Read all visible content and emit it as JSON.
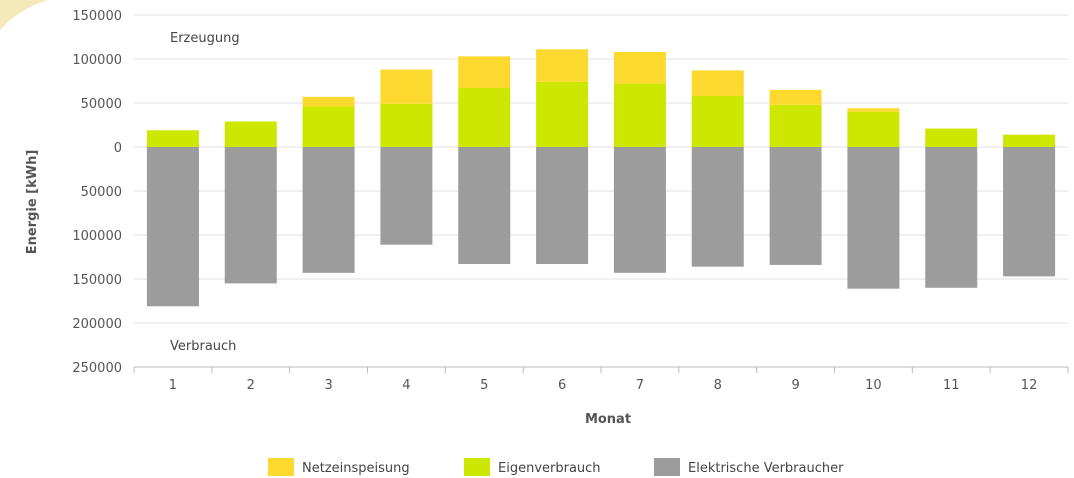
{
  "chart_data": {
    "type": "bar",
    "stacked": true,
    "categories": [
      "1",
      "2",
      "3",
      "4",
      "5",
      "6",
      "7",
      "8",
      "9",
      "10",
      "11",
      "12"
    ],
    "series": [
      {
        "name": "Netzeinspeisung",
        "color": "#fcd92f",
        "values": [
          0,
          0,
          11000,
          39000,
          36000,
          37000,
          36000,
          29000,
          17000,
          4000,
          0,
          0
        ]
      },
      {
        "name": "Eigenverbrauch",
        "color": "#cce800",
        "values": [
          19000,
          29000,
          46000,
          49000,
          67000,
          74000,
          72000,
          58000,
          48000,
          40000,
          21000,
          14000
        ]
      },
      {
        "name": "Elektrische Verbraucher",
        "color": "#9c9c9c",
        "values": [
          -181000,
          -155000,
          -143000,
          -111000,
          -133000,
          -133000,
          -143000,
          -136000,
          -134000,
          -161000,
          -160000,
          -147000
        ]
      }
    ],
    "y_ticks": [
      150000,
      100000,
      50000,
      0,
      -50000,
      -100000,
      -150000,
      -200000,
      -250000
    ],
    "y_tick_labels": [
      "150000",
      "100000",
      "50000",
      "0",
      "50000",
      "100000",
      "150000",
      "200000",
      "250000"
    ],
    "ylim": [
      -250000,
      150000
    ],
    "xlabel": "Monat",
    "ylabel": "Energie [kWh]",
    "annotations": {
      "top": "Erzeugung",
      "bottom": "Verbrauch"
    },
    "grid": true,
    "legend_position": "bottom-center"
  }
}
